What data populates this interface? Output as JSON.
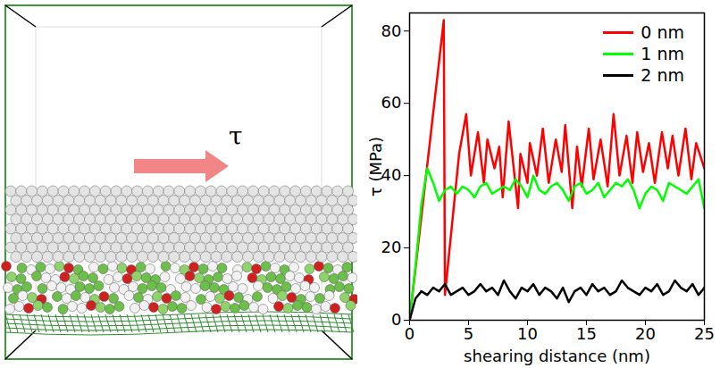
{
  "chart_data": {
    "type": "line",
    "x_label": "shearing distance (nm)",
    "y_label": "τ (MPa)",
    "xlim": [
      0,
      25
    ],
    "xticks": [
      0,
      5,
      10,
      15,
      20,
      25
    ],
    "ylim": [
      0,
      85
    ],
    "yticks": [
      0,
      20,
      40,
      60,
      80
    ],
    "grid": false,
    "legend": "top-right",
    "series": [
      {
        "name": "0 nm",
        "color": "#ff0000",
        "x": [
          0,
          2.9,
          3.0,
          4.2,
          4.8,
          5.2,
          5.8,
          6.3,
          6.6,
          7.2,
          7.6,
          7.9,
          8.4,
          9.2,
          9.4,
          10.0,
          10.2,
          10.8,
          11.3,
          11.8,
          12.4,
          12.9,
          13.2,
          13.8,
          14.2,
          14.6,
          15.2,
          15.6,
          16.2,
          16.8,
          17.3,
          17.8,
          18.4,
          18.9,
          19.3,
          19.8,
          20.3,
          20.8,
          21.4,
          21.9,
          22.3,
          22.8,
          23.4,
          23.9,
          24.3,
          24.8,
          25
        ],
        "values": [
          0,
          83,
          7,
          46,
          57,
          40,
          52,
          38,
          50,
          42,
          48,
          34,
          55,
          31,
          46,
          38,
          49,
          40,
          53,
          38,
          50,
          41,
          54,
          31,
          48,
          37,
          53,
          39,
          50,
          37,
          57,
          40,
          51,
          38,
          52,
          41,
          49,
          38,
          52,
          42,
          51,
          40,
          53,
          39,
          49,
          44,
          42
        ]
      },
      {
        "name": "1 nm",
        "color": "#00ff00",
        "x": [
          0,
          0.5,
          1,
          1.5,
          2,
          2.5,
          3,
          3.5,
          4,
          4.5,
          5,
          5.5,
          6,
          6.5,
          7,
          7.5,
          8,
          8.5,
          9,
          9.5,
          10,
          10.5,
          11,
          11.5,
          12,
          12.5,
          13,
          13.5,
          14,
          14.5,
          15,
          15.5,
          16,
          16.5,
          17,
          17.5,
          18,
          18.5,
          19,
          19.5,
          20,
          20.5,
          21,
          21.5,
          22,
          22.5,
          23,
          23.5,
          24,
          24.5,
          25
        ],
        "values": [
          0,
          15,
          32,
          42,
          38,
          33,
          36,
          37,
          35,
          37,
          36,
          34,
          37,
          38,
          35,
          36,
          37,
          36,
          39,
          37,
          34,
          40,
          36,
          35,
          37,
          38,
          36,
          33,
          37,
          38,
          35,
          36,
          38,
          34,
          36,
          38,
          37,
          39,
          36,
          31,
          35,
          37,
          36,
          33,
          38,
          37,
          36,
          35,
          37,
          39,
          31
        ]
      },
      {
        "name": "2 nm",
        "color": "#000000",
        "x": [
          0,
          0.5,
          1,
          1.5,
          2,
          2.5,
          3,
          3.5,
          4,
          4.5,
          5,
          5.5,
          6,
          6.5,
          7,
          7.5,
          8,
          8.5,
          9,
          9.5,
          10,
          10.5,
          11,
          11.5,
          12,
          12.5,
          13,
          13.5,
          14,
          14.5,
          15,
          15.5,
          16,
          16.5,
          17,
          17.5,
          18,
          18.5,
          19,
          19.5,
          20,
          20.5,
          21,
          21.5,
          22,
          22.5,
          23,
          23.5,
          24,
          24.5,
          25
        ],
        "values": [
          0,
          6,
          8,
          7,
          9,
          8,
          10,
          7,
          8,
          9,
          7,
          8,
          10,
          8,
          9,
          7,
          11,
          8,
          6,
          9,
          8,
          10,
          7,
          9,
          8,
          6,
          9,
          5,
          8,
          9,
          7,
          10,
          8,
          9,
          7,
          8,
          11,
          9,
          8,
          7,
          9,
          8,
          10,
          7,
          8,
          11,
          9,
          8,
          10,
          7,
          9
        ]
      }
    ]
  },
  "illustration": {
    "arrow_label": "τ"
  }
}
